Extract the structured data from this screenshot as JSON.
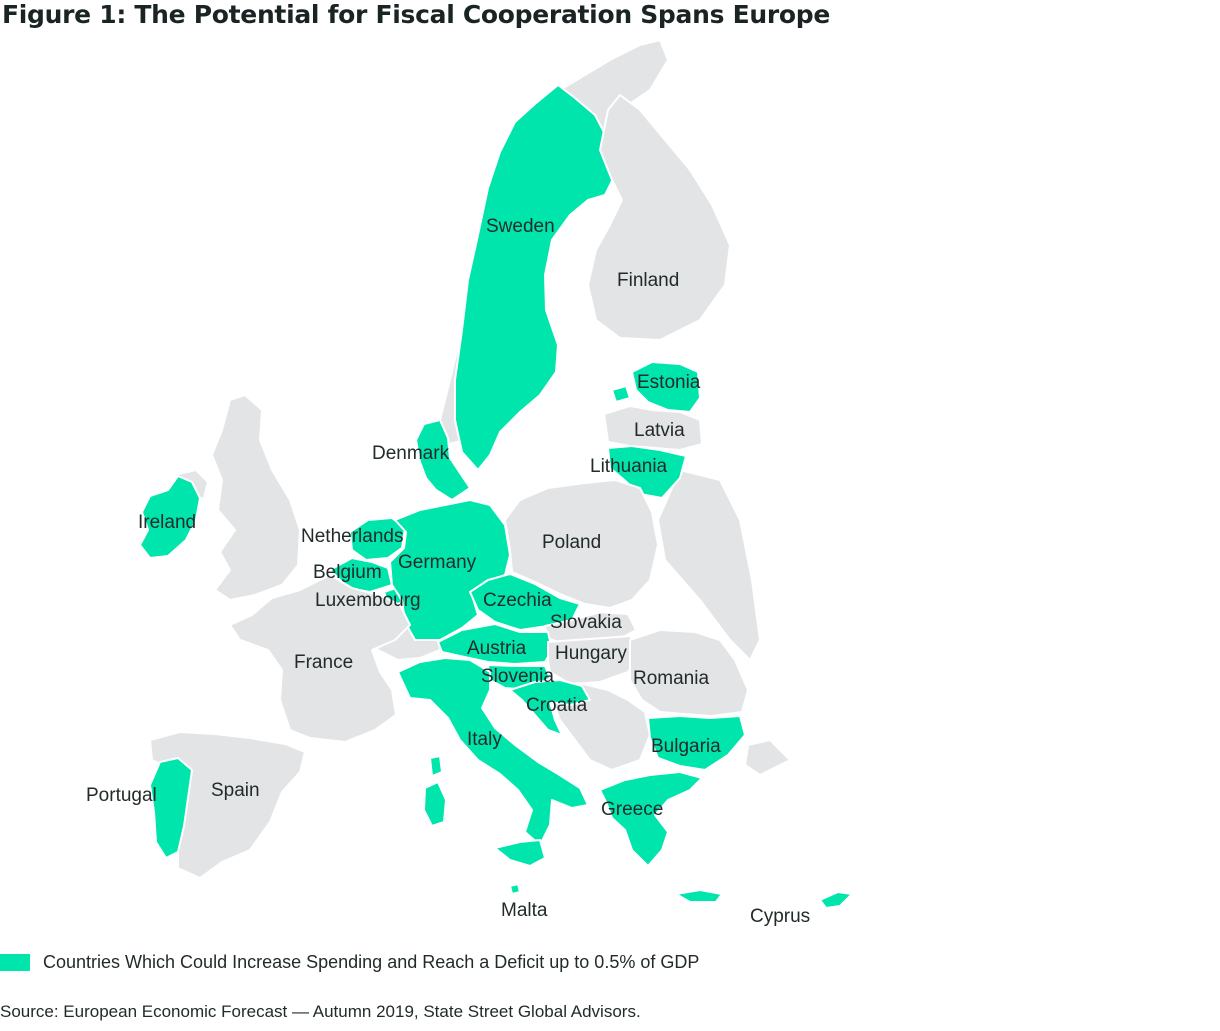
{
  "title": "Figure 1: The Potential for Fiscal Cooperation Spans Europe",
  "colors": {
    "highlight": "#00e5ac",
    "other": "#e3e4e6",
    "border": "#ffffff",
    "text": "#222b2b"
  },
  "countries": [
    {
      "id": "sweden",
      "label": "Sweden",
      "highlighted": true
    },
    {
      "id": "finland",
      "label": "Finland",
      "highlighted": false
    },
    {
      "id": "estonia",
      "label": "Estonia",
      "highlighted": true
    },
    {
      "id": "latvia",
      "label": "Latvia",
      "highlighted": false
    },
    {
      "id": "lithuania",
      "label": "Lithuania",
      "highlighted": true
    },
    {
      "id": "denmark",
      "label": "Denmark",
      "highlighted": true
    },
    {
      "id": "ireland",
      "label": "Ireland",
      "highlighted": true
    },
    {
      "id": "netherlands",
      "label": "Netherlands",
      "highlighted": true
    },
    {
      "id": "germany",
      "label": "Germany",
      "highlighted": true
    },
    {
      "id": "belgium",
      "label": "Belgium",
      "highlighted": true
    },
    {
      "id": "luxembourg",
      "label": "Luxembourg",
      "highlighted": true
    },
    {
      "id": "poland",
      "label": "Poland",
      "highlighted": false
    },
    {
      "id": "czechia",
      "label": "Czechia",
      "highlighted": true
    },
    {
      "id": "slovakia",
      "label": "Slovakia",
      "highlighted": false
    },
    {
      "id": "austria",
      "label": "Austria",
      "highlighted": true
    },
    {
      "id": "hungary",
      "label": "Hungary",
      "highlighted": false
    },
    {
      "id": "france",
      "label": "France",
      "highlighted": false
    },
    {
      "id": "slovenia",
      "label": "Slovenia",
      "highlighted": true
    },
    {
      "id": "romania",
      "label": "Romania",
      "highlighted": false
    },
    {
      "id": "croatia",
      "label": "Croatia",
      "highlighted": true
    },
    {
      "id": "italy",
      "label": "Italy",
      "highlighted": true
    },
    {
      "id": "bulgaria",
      "label": "Bulgaria",
      "highlighted": true
    },
    {
      "id": "portugal",
      "label": "Portugal",
      "highlighted": true
    },
    {
      "id": "spain",
      "label": "Spain",
      "highlighted": false
    },
    {
      "id": "greece",
      "label": "Greece",
      "highlighted": true
    },
    {
      "id": "malta",
      "label": "Malta",
      "highlighted": true
    },
    {
      "id": "cyprus",
      "label": "Cyprus",
      "highlighted": true
    }
  ],
  "legend": {
    "label": "Countries Which Could Increase Spending and Reach a Deficit up to 0.5% of GDP"
  },
  "source": "Source: European Economic Forecast — Autumn 2019, State Street Global Advisors."
}
